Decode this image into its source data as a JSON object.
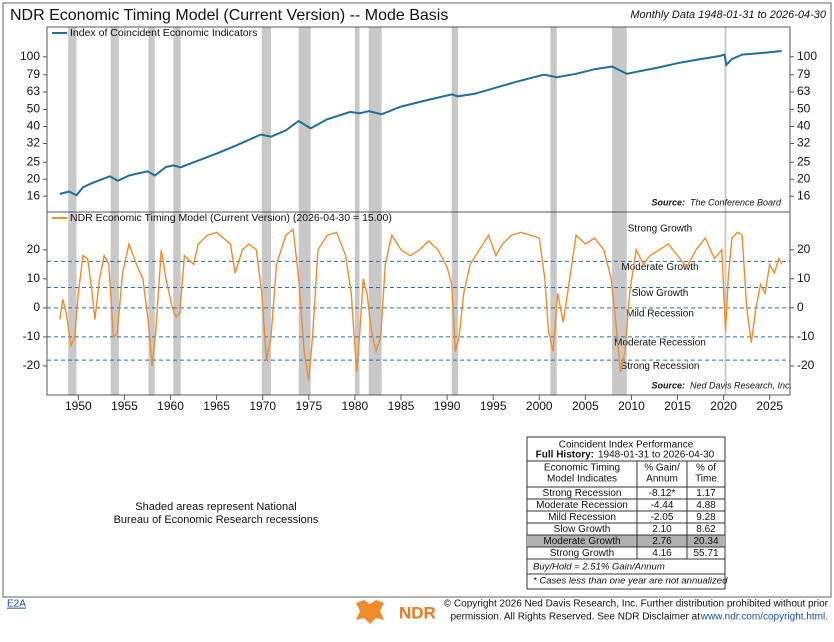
{
  "header": {
    "title": "NDR Economic Timing Model (Current Version) -- Mode Basis",
    "subtitle": "Monthly Data 1948-01-31 to 2026-04-30"
  },
  "chart_data": [
    {
      "type": "line",
      "ylog": true,
      "ylim": [
        13,
        148
      ],
      "yticks": [
        16,
        20,
        25,
        32,
        40,
        50,
        63,
        79,
        100
      ],
      "recessions": [
        [
          1948.9,
          1949.8
        ],
        [
          1953.5,
          1954.4
        ],
        [
          1957.6,
          1958.3
        ],
        [
          1960.3,
          1961.1
        ],
        [
          1969.9,
          1970.9
        ],
        [
          1973.9,
          1975.2
        ],
        [
          1980.0,
          1980.5
        ],
        [
          1981.5,
          1982.9
        ],
        [
          1990.5,
          1991.2
        ],
        [
          2001.2,
          2001.9
        ],
        [
          2007.9,
          2009.5
        ],
        [
          2020.1,
          2020.3
        ]
      ],
      "recession_color": "#c8c8c8",
      "x": [
        1948.0,
        1949.0,
        1949.8,
        1950.5,
        1951.5,
        1953.4,
        1954.3,
        1955.5,
        1957.5,
        1958.3,
        1959.5,
        1960.3,
        1961.1,
        1962.5,
        1965.0,
        1967.0,
        1969.8,
        1970.9,
        1972.5,
        1973.9,
        1975.2,
        1977.0,
        1979.5,
        1980.5,
        1981.5,
        1982.9,
        1985.0,
        1987.5,
        1990.5,
        1991.2,
        1993.0,
        1995.0,
        1997.5,
        2000.5,
        2001.9,
        2004.0,
        2006.0,
        2007.9,
        2009.5,
        2011.0,
        2013.0,
        2015.0,
        2017.0,
        2019.5,
        2020.1,
        2020.3,
        2020.9,
        2022.0,
        2024.0,
        2026.3
      ],
      "series": [
        {
          "name": "Index of Coincident Economic Indicators",
          "color": "#1f6f9a",
          "values": [
            16.5,
            17,
            16.2,
            18,
            19,
            20.8,
            19.6,
            21,
            22.2,
            21,
            23.5,
            24,
            23.4,
            25,
            28,
            31,
            36,
            35,
            38,
            43,
            39,
            44,
            48.5,
            47.5,
            49,
            47,
            52,
            56,
            61,
            59.5,
            61.5,
            66,
            72,
            79,
            76.5,
            80,
            85,
            88,
            80,
            83,
            87,
            92,
            96,
            101,
            103,
            90,
            97,
            103,
            105,
            108
          ]
        }
      ],
      "source_label": "Source:",
      "source": "The Conference Board"
    },
    {
      "type": "line",
      "ylim": [
        -30,
        33
      ],
      "yticks": [
        -20,
        -10,
        0,
        10,
        20
      ],
      "xlim": [
        1946.6,
        2027.2
      ],
      "xticks": [
        1950,
        1955,
        1960,
        1965,
        1970,
        1975,
        1980,
        1985,
        1990,
        1995,
        2000,
        2005,
        2010,
        2015,
        2020,
        2025
      ],
      "zone_lines": [
        16,
        7,
        0,
        -10,
        -18
      ],
      "zone_color": "#2a6fa8",
      "zone_labels": [
        "Strong Growth",
        "Moderate Growth",
        "Slow Growth",
        "Mild Recession",
        "Moderate Recession",
        "Strong Recession"
      ],
      "x": [
        1948.0,
        1948.3,
        1948.7,
        1949.2,
        1949.6,
        1950.0,
        1950.5,
        1951.0,
        1951.5,
        1951.8,
        1952.3,
        1952.8,
        1953.3,
        1953.8,
        1954.2,
        1954.8,
        1955.5,
        1956.3,
        1957.0,
        1957.6,
        1958.0,
        1958.4,
        1959.0,
        1959.5,
        1960.2,
        1960.6,
        1961.0,
        1961.5,
        1962.5,
        1963.0,
        1964.0,
        1965.0,
        1966.5,
        1967.0,
        1967.8,
        1968.5,
        1969.3,
        1969.9,
        1970.4,
        1970.9,
        1971.5,
        1972.5,
        1973.3,
        1973.9,
        1974.5,
        1975.0,
        1975.4,
        1976.0,
        1977.0,
        1978.0,
        1979.0,
        1979.6,
        1980.2,
        1980.5,
        1980.9,
        1981.3,
        1981.8,
        1982.3,
        1982.8,
        1983.3,
        1984.0,
        1985.0,
        1986.0,
        1987.0,
        1988.0,
        1989.0,
        1990.0,
        1990.5,
        1990.9,
        1991.3,
        1991.8,
        1992.5,
        1993.5,
        1994.5,
        1995.3,
        1996.0,
        1997.0,
        1998.0,
        1999.0,
        2000.0,
        2000.6,
        2001.0,
        2001.5,
        2002.0,
        2002.6,
        2003.3,
        2004.0,
        2005.0,
        2006.0,
        2007.0,
        2007.8,
        2008.3,
        2008.8,
        2009.3,
        2009.8,
        2010.5,
        2011.3,
        2012.0,
        2013.0,
        2014.0,
        2015.0,
        2016.0,
        2017.0,
        2018.0,
        2019.0,
        2019.8,
        2020.2,
        2020.5,
        2020.9,
        2021.5,
        2022.0,
        2022.5,
        2023.0,
        2023.5,
        2024.0,
        2024.5,
        2025.0,
        2025.5,
        2026.0,
        2026.3
      ],
      "series": [
        {
          "name": "NDR Economic Timing Model (Current Version) (2026-04-30 = 15.00)",
          "color": "#f08c2a",
          "values": [
            -4,
            3,
            -2,
            -13,
            -10,
            5,
            18,
            17,
            5,
            -4,
            10,
            18,
            15,
            -10,
            -9,
            12,
            22,
            15,
            10,
            -5,
            -20,
            -8,
            20,
            10,
            0,
            -3,
            -2,
            18,
            15,
            22,
            25,
            26,
            22,
            12,
            20,
            22,
            20,
            5,
            -18,
            -10,
            15,
            25,
            27,
            10,
            -15,
            -25,
            -10,
            20,
            25,
            26,
            18,
            5,
            -22,
            -10,
            10,
            5,
            -8,
            -15,
            -10,
            15,
            25,
            20,
            18,
            20,
            23,
            20,
            14,
            8,
            -15,
            -10,
            5,
            15,
            20,
            25,
            18,
            22,
            25,
            26,
            25,
            24,
            10,
            -8,
            -15,
            5,
            -5,
            10,
            25,
            22,
            24,
            20,
            10,
            -5,
            -22,
            -15,
            5,
            20,
            15,
            18,
            20,
            22,
            18,
            14,
            20,
            24,
            17,
            20,
            -8,
            10,
            24,
            26,
            25,
            0,
            -12,
            0,
            8,
            5,
            15,
            12,
            17,
            15
          ]
        }
      ],
      "source_label": "Source:",
      "source": "Ned Davis Research, Inc."
    }
  ],
  "note": [
    "Shaded areas represent National",
    "Bureau of Economic Research recessions"
  ],
  "table": {
    "title": "Coincident Index Performance",
    "history_label": "Full History:",
    "history": "1948-01-31 to 2026-04-30",
    "header": [
      [
        "Economic Timing",
        "Model Indicates"
      ],
      [
        "% Gain/",
        "Annum"
      ],
      [
        "% of",
        "Time"
      ]
    ],
    "rows": [
      [
        "Strong Recession",
        "-8.12*",
        "1.17"
      ],
      [
        "Moderate Recession",
        "-4.44",
        "4.88"
      ],
      [
        "Mild Recession",
        "-2.05",
        "9.28"
      ],
      [
        "Slow Growth",
        "2.10",
        "8.62"
      ],
      [
        "Moderate Growth",
        "2.76",
        "20.34"
      ],
      [
        "Strong Growth",
        "4.16",
        "55.71"
      ]
    ],
    "highlight_row": 4,
    "highlight_color": "#b0b0b0",
    "notes": [
      "Buy/Hold = 2.51% Gain/Annum",
      "* Cases less than one year are not annualized"
    ]
  },
  "footer": {
    "code": "E2A",
    "logo": "NDR",
    "copyright": [
      "© Copyright 2026 Ned Davis Research, Inc. Further distribution prohibited without prior",
      "permission. All Rights Reserved. See NDR Disclaimer at"
    ],
    "link": "www.ndr.com/copyright.html."
  }
}
